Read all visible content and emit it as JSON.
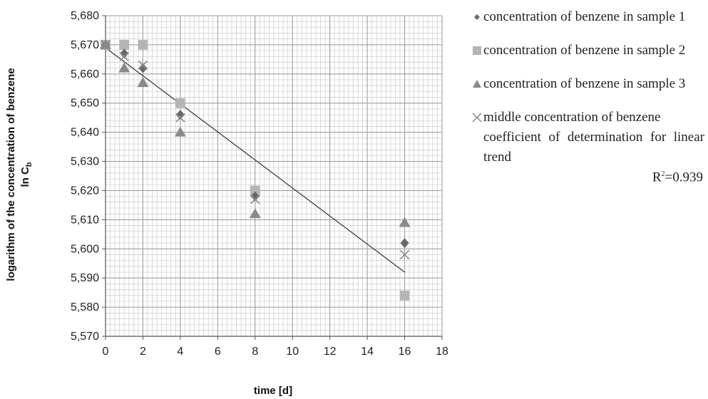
{
  "chart_data": {
    "type": "scatter",
    "xlabel": "time [d]",
    "ylabel_main": "logarithm of the concentration of benzene",
    "ylabel_symbol": "ln C",
    "ylabel_subscript": "b",
    "xlim": [
      0,
      18
    ],
    "ylim": [
      5.57,
      5.68
    ],
    "x_ticks": [
      "0",
      "2",
      "4",
      "6",
      "8",
      "10",
      "12",
      "14",
      "16",
      "18"
    ],
    "y_ticks": [
      "5,570",
      "5,580",
      "5,590",
      "5,600",
      "5,610",
      "5,620",
      "5,630",
      "5,640",
      "5,650",
      "5,660",
      "5,670",
      "5,680"
    ],
    "grid": true,
    "legend_position": "right",
    "series": [
      {
        "name": "concentration of benzene in sample 1",
        "marker": "diamond",
        "color": "#686868",
        "x": [
          0,
          1,
          2,
          4,
          8,
          16
        ],
        "y": [
          5.67,
          5.667,
          5.662,
          5.646,
          5.618,
          5.602
        ]
      },
      {
        "name": "concentration of benzene in sample 2",
        "marker": "square",
        "color": "#b5b5b5",
        "x": [
          0,
          1,
          2,
          4,
          8,
          16
        ],
        "y": [
          5.67,
          5.67,
          5.67,
          5.65,
          5.62,
          5.584
        ]
      },
      {
        "name": "concentration of benzene in sample 3",
        "marker": "triangle",
        "color": "#8a8a8a",
        "x": [
          0,
          1,
          2,
          4,
          8,
          16
        ],
        "y": [
          5.67,
          5.662,
          5.657,
          5.64,
          5.612,
          5.609
        ]
      },
      {
        "name": "middle concentration of benzene",
        "marker": "x",
        "color": "#888888",
        "x": [
          0,
          1,
          2,
          4,
          8,
          16
        ],
        "y": [
          5.67,
          5.666,
          5.663,
          5.645,
          5.617,
          5.598
        ]
      }
    ],
    "trendline": {
      "x": [
        0,
        16
      ],
      "y": [
        5.669,
        5.592
      ],
      "color": "#333333"
    },
    "annotations": {
      "trend_note": "coefficient of determination for linear trend",
      "r2_prefix": "R",
      "r2_sup": "2",
      "r2_value": "=0.939"
    }
  }
}
